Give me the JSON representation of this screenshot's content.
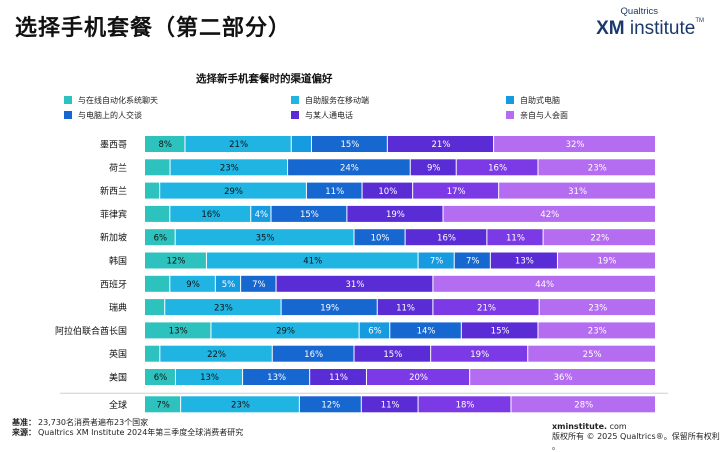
{
  "page": {
    "title": "选择手机套餐（第二部分）"
  },
  "logo": {
    "top": "Qualtrics",
    "main_bold": "XM",
    "main_rest": " institute",
    "tm": "TM"
  },
  "footer": {
    "base_label": "基准：",
    "base_text": "23,730名消费者遍布23个国家",
    "source_label": "来源：",
    "source_text": "Qualtrics XM Institute 2024年第三季度全球消费者研究",
    "url": "xminstitute.",
    "url_suffix": "com",
    "copyright": "版权所有 © 2025 Qualtrics®。保留所有权利",
    "period": "。"
  },
  "chart_data": {
    "type": "bar",
    "orientation": "horizontal",
    "stacked": true,
    "normalized": true,
    "title": "选择新手机套餐时的渠道偏好",
    "legend_position": "top",
    "categories": [
      "墨西哥",
      "荷兰",
      "新西兰",
      "菲律宾",
      "新加坡",
      "韩国",
      "西班牙",
      "瑞典",
      "阿拉伯联合酋长国",
      "英国",
      "美国",
      "全球"
    ],
    "series": [
      {
        "name": "与在线自动化系统聊天",
        "color": "#2ec2be",
        "values": [
          8,
          5,
          3,
          5,
          6,
          12,
          5,
          4,
          13,
          3,
          6,
          7
        ],
        "labels": [
          "8%",
          "",
          "",
          "",
          "6%",
          "12%",
          "",
          "",
          "13%",
          "",
          "6%",
          "7%"
        ]
      },
      {
        "name": "自助服务在移动端",
        "color": "#1fb4e2",
        "values": [
          21,
          23,
          29,
          16,
          35,
          41,
          9,
          23,
          29,
          22,
          13,
          23
        ],
        "labels": [
          "21%",
          "23%",
          "29%",
          "16%",
          "35%",
          "41%",
          "9%",
          "23%",
          "29%",
          "22%",
          "13%",
          "23%"
        ]
      },
      {
        "name": "自助式电脑",
        "color": "#169ae0",
        "values": [
          4,
          0,
          0,
          4,
          0,
          7,
          5,
          0,
          6,
          0,
          0,
          0
        ],
        "labels": [
          "",
          "",
          "",
          "4%",
          "",
          "7%",
          "5%",
          "",
          "6%",
          "",
          "",
          ""
        ]
      },
      {
        "name": "与电脑上的人交谈",
        "color": "#1767d1",
        "values": [
          15,
          24,
          11,
          15,
          10,
          7,
          7,
          19,
          14,
          16,
          13,
          12
        ],
        "labels": [
          "15%",
          "24%",
          "11%",
          "15%",
          "10%",
          "7%",
          "7%",
          "19%",
          "14%",
          "16%",
          "13%",
          "12%"
        ]
      },
      {
        "name": "与某人通电话",
        "color": "#5a2cd6",
        "values": [
          21,
          9,
          10,
          19,
          16,
          13,
          31,
          11,
          15,
          15,
          11,
          11
        ],
        "labels": [
          "21%",
          "9%",
          "10%",
          "19%",
          "16%",
          "13%",
          "31%",
          "11%",
          "15%",
          "15%",
          "11%",
          "11%"
        ]
      },
      {
        "name": "与某人通电话 (2)",
        "color": "#7c3ae6",
        "values": [
          0,
          16,
          17,
          0,
          11,
          0,
          0,
          21,
          0,
          19,
          20,
          18
        ],
        "labels": [
          "",
          "16%",
          "17%",
          "",
          "11%",
          "",
          "",
          "21%",
          "",
          "19%",
          "20%",
          "18%"
        ]
      },
      {
        "name": "亲自与人会面",
        "color": "#b46df0",
        "values": [
          32,
          23,
          31,
          42,
          22,
          19,
          44,
          23,
          23,
          25,
          36,
          28
        ],
        "labels": [
          "32%",
          "23%",
          "31%",
          "42%",
          "22%",
          "19%",
          "44%",
          "23%",
          "23%",
          "25%",
          "36%",
          "28%"
        ]
      }
    ],
    "legend": [
      {
        "name": "与在线自动化系统聊天",
        "color": "#2ec2be"
      },
      {
        "name": "自助服务在移动端",
        "color": "#1fb4e2"
      },
      {
        "name": "自助式电脑",
        "color": "#169ae0"
      },
      {
        "name": "与电脑上的人交谈",
        "color": "#1767d1"
      },
      {
        "name": "与某人通电话",
        "color": "#5a2cd6"
      },
      {
        "name": "亲自与人会面",
        "color": "#b46df0"
      }
    ]
  }
}
